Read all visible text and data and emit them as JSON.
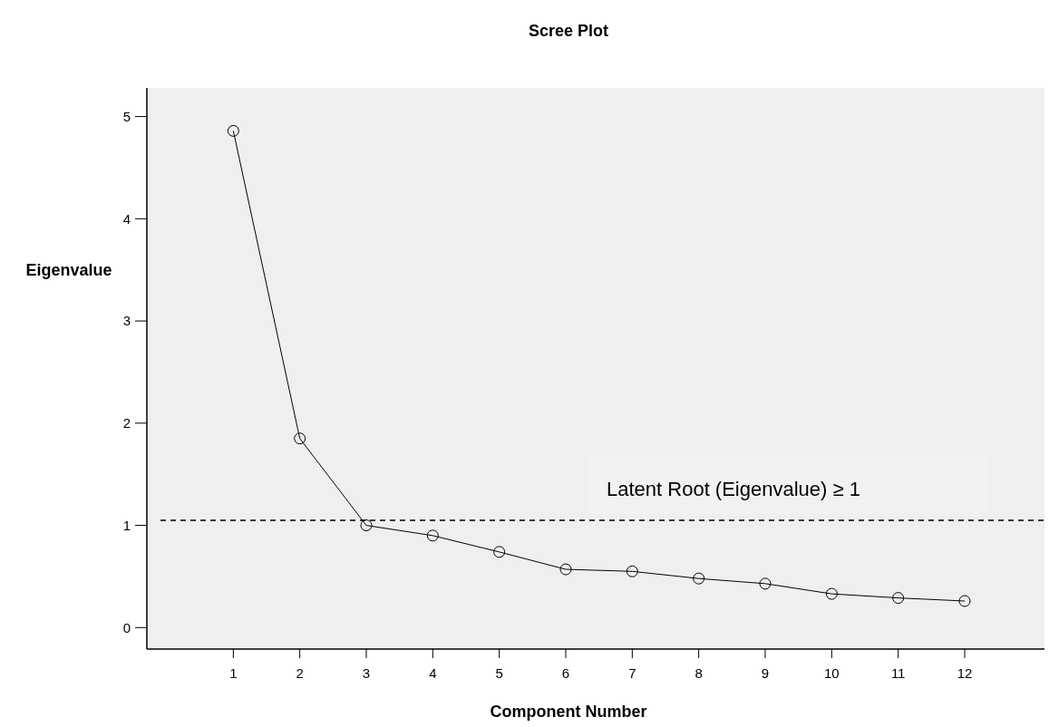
{
  "chart_data": {
    "type": "line",
    "title": "Scree Plot",
    "xlabel": "Component Number",
    "ylabel": "Eigenvalue",
    "x": [
      1,
      2,
      3,
      4,
      5,
      6,
      7,
      8,
      9,
      10,
      11,
      12
    ],
    "xlim": [
      -0.3,
      13.2
    ],
    "xticks": [
      1,
      2,
      3,
      4,
      5,
      6,
      7,
      8,
      9,
      10,
      11,
      12
    ],
    "series": [
      {
        "color": "#000000",
        "values": [
          4.86,
          1.85,
          1.0,
          0.9,
          0.74,
          0.57,
          0.55,
          0.48,
          0.43,
          0.33,
          0.29,
          0.26
        ]
      }
    ],
    "ylim": [
      -0.21,
      5.28
    ],
    "yticks": [
      0,
      1,
      2,
      3,
      4,
      5
    ],
    "marker": "circle",
    "line_style": "solid",
    "grid": false,
    "ref_lines": [
      {
        "axis": "y",
        "value": 1.05,
        "label": "Latent Root (Eigenvalue) ≥ 1",
        "line_style": "dashed",
        "color": "#000000"
      }
    ]
  }
}
